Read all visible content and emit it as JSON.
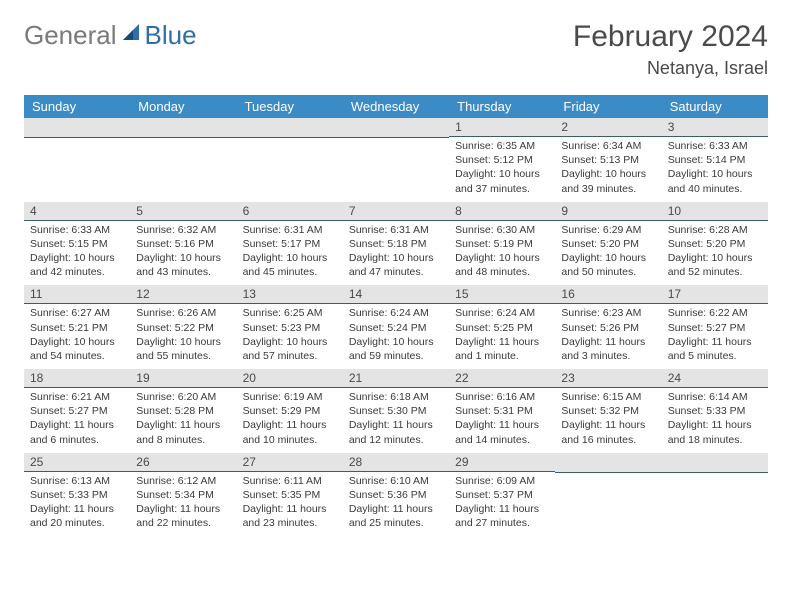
{
  "logo": {
    "general": "General",
    "blue": "Blue"
  },
  "title": "February 2024",
  "location": "Netanya, Israel",
  "colors": {
    "header_bg": "#3b8bc6",
    "header_text": "#ffffff",
    "date_bar_bg": "#e4e4e4",
    "date_bar_border": "#3a5a7a",
    "body_text": "#3a3a3a",
    "logo_gray": "#7a7a7a",
    "logo_blue": "#2f6fa8"
  },
  "day_names": [
    "Sunday",
    "Monday",
    "Tuesday",
    "Wednesday",
    "Thursday",
    "Friday",
    "Saturday"
  ],
  "weeks": [
    [
      null,
      null,
      null,
      null,
      {
        "date": "1",
        "sunrise": "Sunrise: 6:35 AM",
        "sunset": "Sunset: 5:12 PM",
        "dl1": "Daylight: 10 hours",
        "dl2": "and 37 minutes."
      },
      {
        "date": "2",
        "sunrise": "Sunrise: 6:34 AM",
        "sunset": "Sunset: 5:13 PM",
        "dl1": "Daylight: 10 hours",
        "dl2": "and 39 minutes."
      },
      {
        "date": "3",
        "sunrise": "Sunrise: 6:33 AM",
        "sunset": "Sunset: 5:14 PM",
        "dl1": "Daylight: 10 hours",
        "dl2": "and 40 minutes."
      }
    ],
    [
      {
        "date": "4",
        "sunrise": "Sunrise: 6:33 AM",
        "sunset": "Sunset: 5:15 PM",
        "dl1": "Daylight: 10 hours",
        "dl2": "and 42 minutes."
      },
      {
        "date": "5",
        "sunrise": "Sunrise: 6:32 AM",
        "sunset": "Sunset: 5:16 PM",
        "dl1": "Daylight: 10 hours",
        "dl2": "and 43 minutes."
      },
      {
        "date": "6",
        "sunrise": "Sunrise: 6:31 AM",
        "sunset": "Sunset: 5:17 PM",
        "dl1": "Daylight: 10 hours",
        "dl2": "and 45 minutes."
      },
      {
        "date": "7",
        "sunrise": "Sunrise: 6:31 AM",
        "sunset": "Sunset: 5:18 PM",
        "dl1": "Daylight: 10 hours",
        "dl2": "and 47 minutes."
      },
      {
        "date": "8",
        "sunrise": "Sunrise: 6:30 AM",
        "sunset": "Sunset: 5:19 PM",
        "dl1": "Daylight: 10 hours",
        "dl2": "and 48 minutes."
      },
      {
        "date": "9",
        "sunrise": "Sunrise: 6:29 AM",
        "sunset": "Sunset: 5:20 PM",
        "dl1": "Daylight: 10 hours",
        "dl2": "and 50 minutes."
      },
      {
        "date": "10",
        "sunrise": "Sunrise: 6:28 AM",
        "sunset": "Sunset: 5:20 PM",
        "dl1": "Daylight: 10 hours",
        "dl2": "and 52 minutes."
      }
    ],
    [
      {
        "date": "11",
        "sunrise": "Sunrise: 6:27 AM",
        "sunset": "Sunset: 5:21 PM",
        "dl1": "Daylight: 10 hours",
        "dl2": "and 54 minutes."
      },
      {
        "date": "12",
        "sunrise": "Sunrise: 6:26 AM",
        "sunset": "Sunset: 5:22 PM",
        "dl1": "Daylight: 10 hours",
        "dl2": "and 55 minutes."
      },
      {
        "date": "13",
        "sunrise": "Sunrise: 6:25 AM",
        "sunset": "Sunset: 5:23 PM",
        "dl1": "Daylight: 10 hours",
        "dl2": "and 57 minutes."
      },
      {
        "date": "14",
        "sunrise": "Sunrise: 6:24 AM",
        "sunset": "Sunset: 5:24 PM",
        "dl1": "Daylight: 10 hours",
        "dl2": "and 59 minutes."
      },
      {
        "date": "15",
        "sunrise": "Sunrise: 6:24 AM",
        "sunset": "Sunset: 5:25 PM",
        "dl1": "Daylight: 11 hours",
        "dl2": "and 1 minute."
      },
      {
        "date": "16",
        "sunrise": "Sunrise: 6:23 AM",
        "sunset": "Sunset: 5:26 PM",
        "dl1": "Daylight: 11 hours",
        "dl2": "and 3 minutes."
      },
      {
        "date": "17",
        "sunrise": "Sunrise: 6:22 AM",
        "sunset": "Sunset: 5:27 PM",
        "dl1": "Daylight: 11 hours",
        "dl2": "and 5 minutes."
      }
    ],
    [
      {
        "date": "18",
        "sunrise": "Sunrise: 6:21 AM",
        "sunset": "Sunset: 5:27 PM",
        "dl1": "Daylight: 11 hours",
        "dl2": "and 6 minutes."
      },
      {
        "date": "19",
        "sunrise": "Sunrise: 6:20 AM",
        "sunset": "Sunset: 5:28 PM",
        "dl1": "Daylight: 11 hours",
        "dl2": "and 8 minutes."
      },
      {
        "date": "20",
        "sunrise": "Sunrise: 6:19 AM",
        "sunset": "Sunset: 5:29 PM",
        "dl1": "Daylight: 11 hours",
        "dl2": "and 10 minutes."
      },
      {
        "date": "21",
        "sunrise": "Sunrise: 6:18 AM",
        "sunset": "Sunset: 5:30 PM",
        "dl1": "Daylight: 11 hours",
        "dl2": "and 12 minutes."
      },
      {
        "date": "22",
        "sunrise": "Sunrise: 6:16 AM",
        "sunset": "Sunset: 5:31 PM",
        "dl1": "Daylight: 11 hours",
        "dl2": "and 14 minutes."
      },
      {
        "date": "23",
        "sunrise": "Sunrise: 6:15 AM",
        "sunset": "Sunset: 5:32 PM",
        "dl1": "Daylight: 11 hours",
        "dl2": "and 16 minutes."
      },
      {
        "date": "24",
        "sunrise": "Sunrise: 6:14 AM",
        "sunset": "Sunset: 5:33 PM",
        "dl1": "Daylight: 11 hours",
        "dl2": "and 18 minutes."
      }
    ],
    [
      {
        "date": "25",
        "sunrise": "Sunrise: 6:13 AM",
        "sunset": "Sunset: 5:33 PM",
        "dl1": "Daylight: 11 hours",
        "dl2": "and 20 minutes."
      },
      {
        "date": "26",
        "sunrise": "Sunrise: 6:12 AM",
        "sunset": "Sunset: 5:34 PM",
        "dl1": "Daylight: 11 hours",
        "dl2": "and 22 minutes."
      },
      {
        "date": "27",
        "sunrise": "Sunrise: 6:11 AM",
        "sunset": "Sunset: 5:35 PM",
        "dl1": "Daylight: 11 hours",
        "dl2": "and 23 minutes."
      },
      {
        "date": "28",
        "sunrise": "Sunrise: 6:10 AM",
        "sunset": "Sunset: 5:36 PM",
        "dl1": "Daylight: 11 hours",
        "dl2": "and 25 minutes."
      },
      {
        "date": "29",
        "sunrise": "Sunrise: 6:09 AM",
        "sunset": "Sunset: 5:37 PM",
        "dl1": "Daylight: 11 hours",
        "dl2": "and 27 minutes."
      },
      null,
      null
    ]
  ]
}
